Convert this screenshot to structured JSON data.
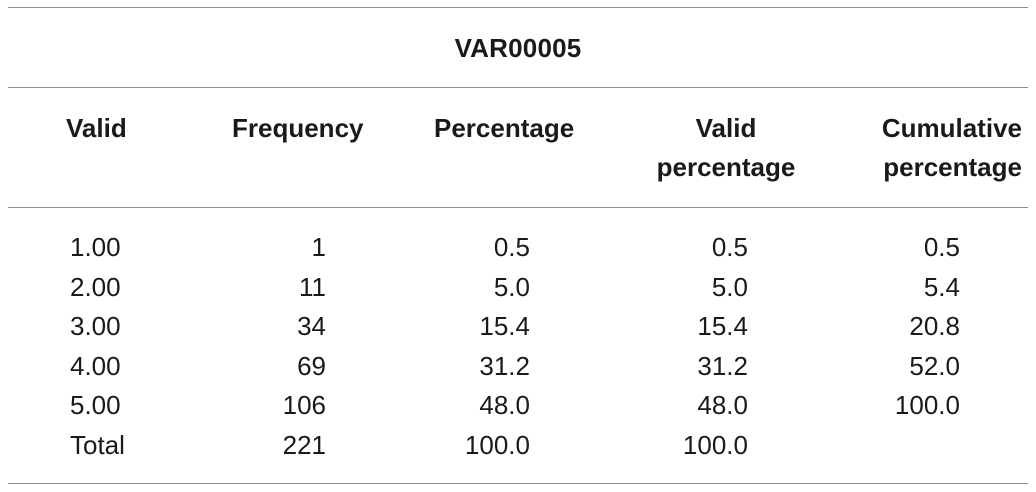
{
  "table": {
    "title": "VAR00005",
    "headers": {
      "col1": [
        "Valid"
      ],
      "col2": [
        "Frequency"
      ],
      "col3": [
        "Percentage"
      ],
      "col4": [
        "Valid",
        "percentage"
      ],
      "col5": [
        "Cumulative",
        "percentage"
      ]
    },
    "rows": [
      [
        "1.00",
        "1",
        "0.5",
        "0.5",
        "0.5"
      ],
      [
        "2.00",
        "11",
        "5.0",
        "5.0",
        "5.4"
      ],
      [
        "3.00",
        "34",
        "15.4",
        "15.4",
        "20.8"
      ],
      [
        "4.00",
        "69",
        "31.2",
        "31.2",
        "52.0"
      ],
      [
        "5.00",
        "106",
        "48.0",
        "48.0",
        "100.0"
      ],
      [
        "Total",
        "221",
        "100.0",
        "100.0",
        ""
      ]
    ]
  }
}
